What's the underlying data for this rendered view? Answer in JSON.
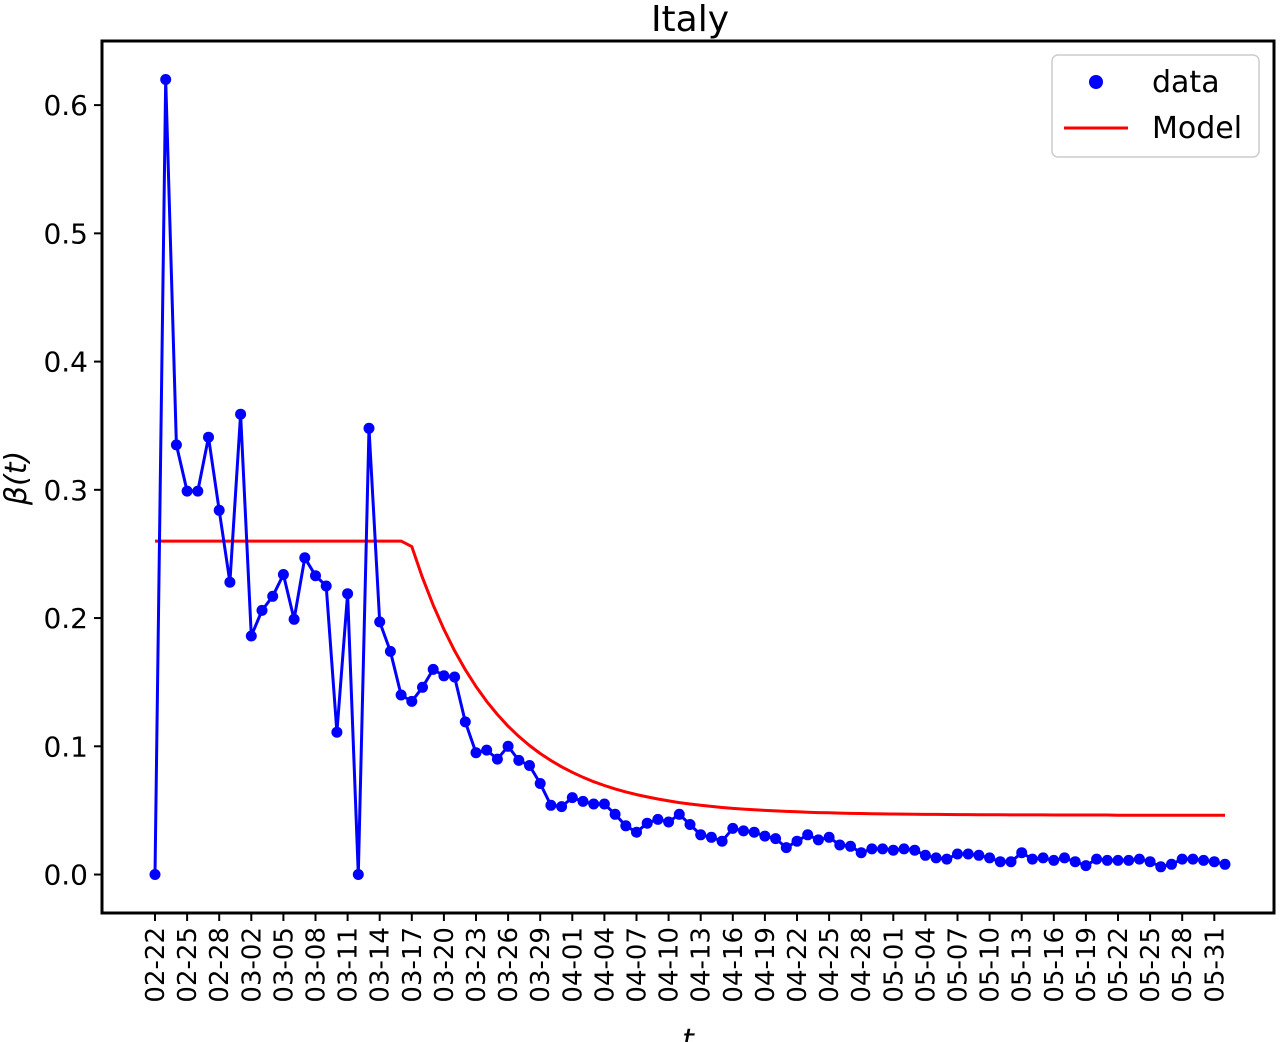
{
  "chart_data": {
    "type": "line",
    "title": "Italy",
    "xlabel": "t",
    "ylabel": "β(t)",
    "ylim": [
      -0.03,
      0.65
    ],
    "y_ticks": [
      0.0,
      0.1,
      0.2,
      0.3,
      0.4,
      0.5,
      0.6
    ],
    "y_tick_labels": [
      "0.0",
      "0.1",
      "0.2",
      "0.3",
      "0.4",
      "0.5",
      "0.6"
    ],
    "x_tick_labels": [
      "02-22",
      "02-25",
      "02-28",
      "03-02",
      "03-05",
      "03-08",
      "03-11",
      "03-14",
      "03-17",
      "03-20",
      "03-23",
      "03-26",
      "03-29",
      "04-01",
      "04-04",
      "04-07",
      "04-10",
      "04-13",
      "04-16",
      "04-19",
      "04-22",
      "04-25",
      "04-28",
      "05-01",
      "05-04",
      "05-07",
      "05-10",
      "05-13",
      "05-16",
      "05-19",
      "05-22",
      "05-25",
      "05-28",
      "05-31"
    ],
    "grid": false,
    "legend_position": "top-right",
    "series": [
      {
        "name": "data",
        "style": "line-with-markers",
        "color": "#0000ff",
        "values": [
          0.0,
          0.62,
          0.335,
          0.299,
          0.299,
          0.341,
          0.284,
          0.228,
          0.359,
          0.186,
          0.206,
          0.217,
          0.234,
          0.199,
          0.247,
          0.233,
          0.225,
          0.111,
          0.219,
          0.0,
          0.348,
          0.197,
          0.174,
          0.14,
          0.135,
          0.146,
          0.16,
          0.155,
          0.154,
          0.119,
          0.095,
          0.097,
          0.09,
          0.1,
          0.089,
          0.085,
          0.071,
          0.054,
          0.053,
          0.06,
          0.057,
          0.055,
          0.055,
          0.047,
          0.038,
          0.033,
          0.04,
          0.043,
          0.041,
          0.047,
          0.039,
          0.031,
          0.029,
          0.026,
          0.036,
          0.034,
          0.033,
          0.03,
          0.028,
          0.021,
          0.026,
          0.031,
          0.027,
          0.029,
          0.023,
          0.022,
          0.017,
          0.02,
          0.02,
          0.019,
          0.02,
          0.019,
          0.015,
          0.013,
          0.012,
          0.016,
          0.016,
          0.015,
          0.013,
          0.01,
          0.01,
          0.017,
          0.012,
          0.013,
          0.011,
          0.013,
          0.01,
          0.007,
          0.012,
          0.011,
          0.011,
          0.011,
          0.012,
          0.01,
          0.006,
          0.008,
          0.012,
          0.012,
          0.011,
          0.01,
          0.008
        ]
      },
      {
        "name": "Model",
        "style": "line",
        "color": "#ff0000",
        "values": [
          0.26,
          0.26,
          0.26,
          0.26,
          0.26,
          0.26,
          0.26,
          0.26,
          0.26,
          0.26,
          0.26,
          0.26,
          0.26,
          0.26,
          0.26,
          0.26,
          0.26,
          0.26,
          0.26,
          0.26,
          0.26,
          0.26,
          0.26,
          0.26,
          0.2557,
          0.2315,
          0.2101,
          0.1912,
          0.1745,
          0.1597,
          0.1466,
          0.135,
          0.1248,
          0.1157,
          0.1077,
          0.1006,
          0.0944,
          0.0889,
          0.084,
          0.0797,
          0.0758,
          0.0724,
          0.0694,
          0.0668,
          0.0644,
          0.0623,
          0.0605,
          0.0589,
          0.0574,
          0.0561,
          0.055,
          0.054,
          0.0531,
          0.0523,
          0.0516,
          0.051,
          0.0505,
          0.05,
          0.0496,
          0.0492,
          0.0489,
          0.0486,
          0.0483,
          0.0481,
          0.0479,
          0.0477,
          0.0476,
          0.0474,
          0.0473,
          0.0472,
          0.0471,
          0.047,
          0.0469,
          0.0469,
          0.0468,
          0.0467,
          0.0467,
          0.0466,
          0.0466,
          0.0466,
          0.0465,
          0.0465,
          0.0465,
          0.0465,
          0.0464,
          0.0464,
          0.0464,
          0.0464,
          0.0464,
          0.0464,
          0.0463,
          0.0463,
          0.0463,
          0.0463,
          0.0463,
          0.0463,
          0.0463,
          0.0463,
          0.0463,
          0.0463,
          0.0463
        ]
      }
    ]
  }
}
